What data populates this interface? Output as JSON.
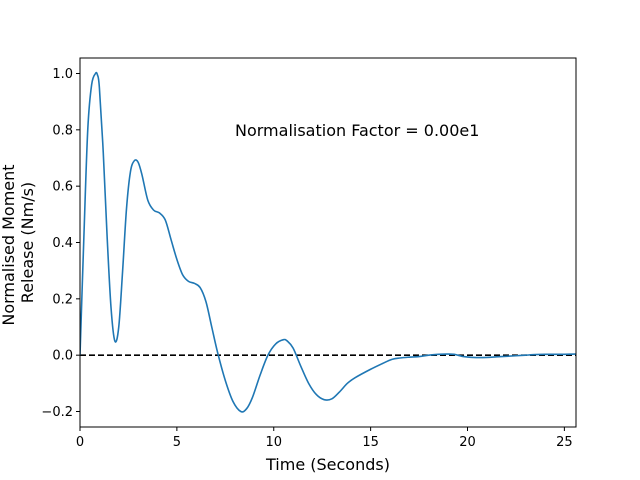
{
  "chart_data": {
    "type": "line",
    "xlabel": "Time (Seconds)",
    "ylabel_lines": [
      "Normalised Moment",
      "Release (Nm/s)"
    ],
    "annotation": "Normalisation Factor = 0.00e1",
    "xlim": [
      0,
      25.6
    ],
    "ylim": [
      -0.255,
      1.055
    ],
    "x_ticks": [
      0,
      5,
      10,
      15,
      20,
      25
    ],
    "x_tick_labels": [
      "0",
      "5",
      "10",
      "15",
      "20",
      "25"
    ],
    "y_ticks": [
      -0.2,
      0.0,
      0.2,
      0.4,
      0.6,
      0.8,
      1.0
    ],
    "y_tick_labels": [
      "−0.2",
      "0.0",
      "0.2",
      "0.4",
      "0.6",
      "0.8",
      "1.0"
    ],
    "grid": false,
    "reference_line": {
      "y": 0,
      "style": "dashed",
      "color": "#000000"
    },
    "series": [
      {
        "color": "#1f77b4",
        "x": [
          0,
          0.2,
          0.4,
          0.6,
          0.8,
          0.9,
          1.0,
          1.2,
          1.4,
          1.6,
          1.8,
          2.0,
          2.2,
          2.4,
          2.6,
          2.8,
          3.0,
          3.2,
          3.5,
          3.8,
          4.1,
          4.4,
          4.7,
          5.0,
          5.3,
          5.6,
          5.9,
          6.2,
          6.5,
          6.8,
          7.1,
          7.5,
          7.9,
          8.3,
          8.6,
          8.9,
          9.3,
          9.7,
          10.1,
          10.5,
          10.7,
          11.0,
          11.4,
          11.8,
          12.2,
          12.6,
          13.0,
          13.4,
          13.8,
          14.2,
          15.0,
          15.6,
          16.1,
          16.5,
          17.0,
          17.5,
          18.0,
          18.5,
          18.9,
          19.3,
          19.8,
          20.3,
          21.0,
          21.5,
          22.0,
          22.5,
          23.0,
          23.5,
          24.0,
          24.5,
          25.0,
          25.6
        ],
        "y": [
          0.0,
          0.42,
          0.8,
          0.96,
          1.0,
          0.995,
          0.95,
          0.72,
          0.42,
          0.17,
          0.05,
          0.1,
          0.3,
          0.52,
          0.65,
          0.69,
          0.685,
          0.64,
          0.55,
          0.515,
          0.505,
          0.48,
          0.41,
          0.34,
          0.285,
          0.262,
          0.255,
          0.24,
          0.19,
          0.1,
          0.01,
          -0.09,
          -0.165,
          -0.2,
          -0.19,
          -0.15,
          -0.07,
          0.0,
          0.04,
          0.055,
          0.05,
          0.025,
          -0.04,
          -0.1,
          -0.14,
          -0.158,
          -0.155,
          -0.13,
          -0.1,
          -0.08,
          -0.05,
          -0.03,
          -0.015,
          -0.01,
          -0.007,
          -0.005,
          0.0,
          0.003,
          0.004,
          0.003,
          -0.005,
          -0.008,
          -0.008,
          -0.006,
          -0.004,
          -0.002,
          0.0,
          0.002,
          0.003,
          0.003,
          0.003,
          0.004
        ]
      }
    ]
  }
}
